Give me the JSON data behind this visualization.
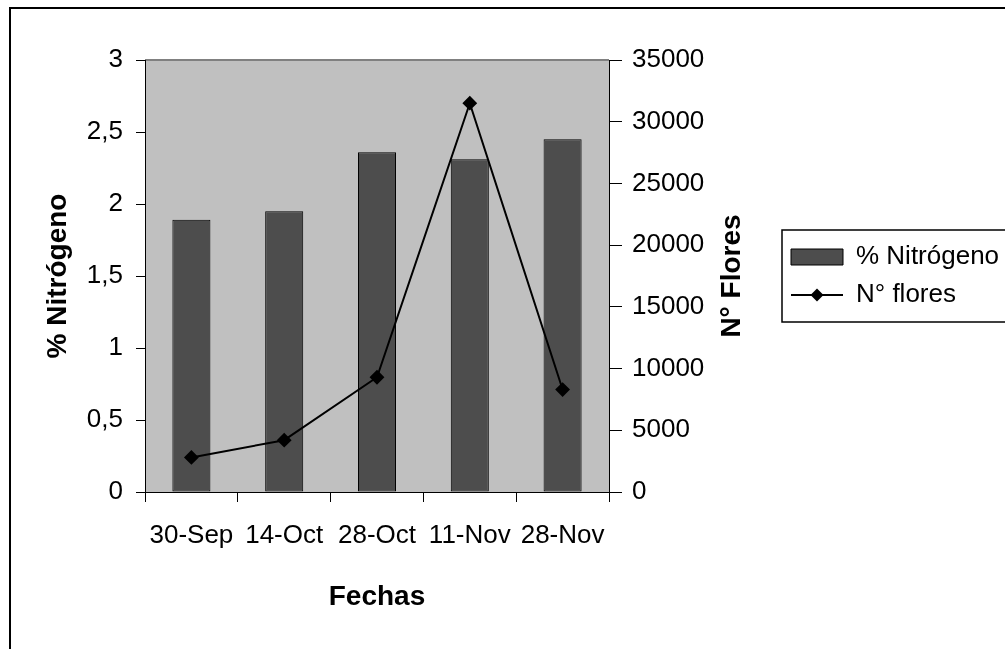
{
  "chart_data": {
    "type": "bar",
    "xlabel": "Fechas",
    "ylabel": "% Nitrógeno",
    "y2label": "N° Flores",
    "categories": [
      "30-Sep",
      "14-Oct",
      "28-Oct",
      "11-Nov",
      "28-Nov"
    ],
    "series": [
      {
        "name": "% Nitrógeno",
        "color": "#4d4d4d",
        "values": [
          1.89,
          1.95,
          2.36,
          2.31,
          2.45
        ]
      },
      {
        "name": "N° flores",
        "type": "line",
        "axis": "y2",
        "color": "#000000",
        "values": [
          2800,
          4200,
          9300,
          31500,
          8300
        ]
      }
    ],
    "ylim": [
      0,
      3
    ],
    "yticks": [
      0,
      {
        "value": 0.5,
        "label": "0,5"
      },
      1,
      {
        "value": 1.5,
        "label": "1,5"
      },
      2,
      {
        "value": 2.5,
        "label": "2,5"
      },
      3
    ],
    "y2lim": [
      0,
      35000
    ],
    "y2ticks": [
      0,
      5000,
      10000,
      15000,
      20000,
      25000,
      30000,
      35000
    ],
    "marker": "diamond",
    "grid": false,
    "legend": "right"
  }
}
